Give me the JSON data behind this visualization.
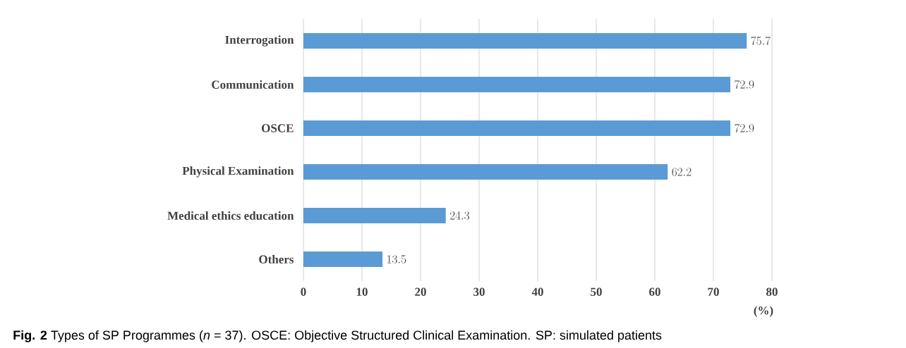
{
  "chart_data": {
    "type": "bar",
    "orientation": "horizontal",
    "categories": [
      "Interrogation",
      "Communication",
      "OSCE",
      "Physical Examination",
      "Medical ethics education",
      "Others"
    ],
    "values": [
      75.7,
      72.9,
      72.9,
      62.2,
      24.3,
      13.5
    ],
    "color": "#5b9bd5",
    "xlim": [
      0,
      80
    ],
    "xticks": [
      0,
      10,
      20,
      30,
      40,
      50,
      60,
      70,
      80
    ],
    "xlabel": "(%)",
    "grid": "x",
    "data_labels": true,
    "annotations": [
      "**Fig. 2** Types of SP Programmes (*n* = 37). OSCE: Objective Structured Clinical Examination. SP: simulated patients"
    ]
  }
}
